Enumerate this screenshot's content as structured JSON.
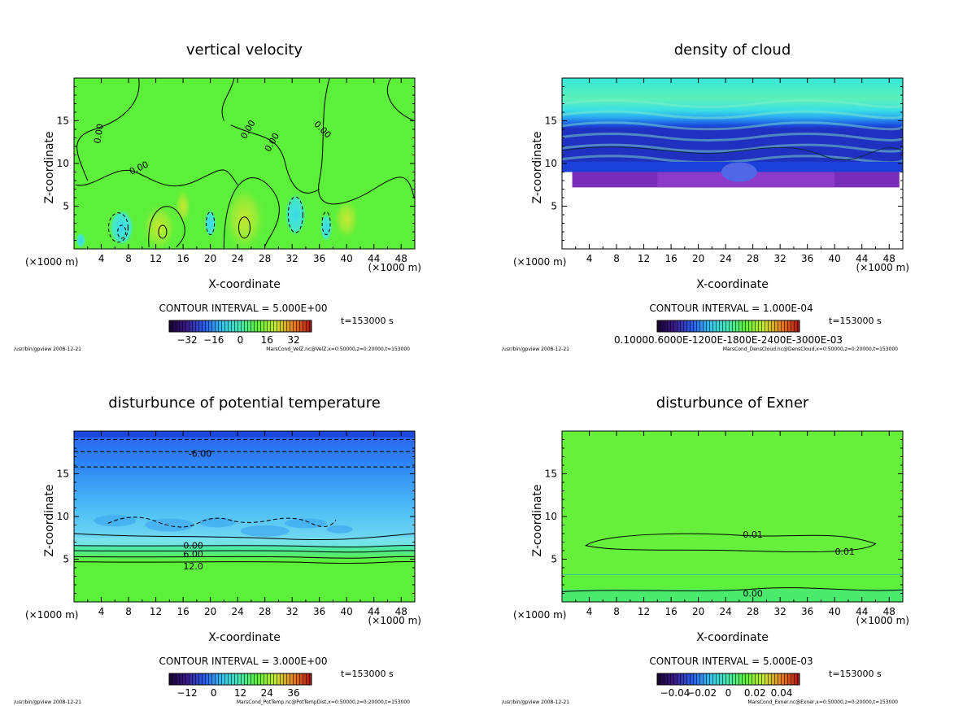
{
  "chart_data": [
    {
      "type": "heatmap",
      "title": "vertical velocity",
      "xlabel": "X-coordinate",
      "ylabel": "Z-coordinate",
      "x_unit": "(×1000 m)",
      "xlim": [
        0,
        50
      ],
      "ylim": [
        0,
        20
      ],
      "xticks": [
        4,
        8,
        12,
        16,
        20,
        24,
        28,
        32,
        36,
        40,
        44,
        48
      ],
      "yticks": [
        5,
        10,
        15
      ],
      "contour_interval": "CONTOUR INTERVAL = 5.000E+00",
      "time": "t=153000 s",
      "colorbar_ticks": [
        "−32",
        "−16",
        "0",
        "16",
        "32"
      ],
      "contour_labels": [
        "0.00",
        "0.00",
        "0.00",
        "0.00",
        "0.00"
      ],
      "footer_left": "/usr/bin/gpview  2008-12-21",
      "footer_right": "MarsCond_VelZ.nc@VelZ,x=0:50000,z=0:20000,t=153000"
    },
    {
      "type": "heatmap",
      "title": "density of cloud",
      "xlabel": "X-coordinate",
      "ylabel": "Z-coordinate",
      "x_unit": "(×1000 m)",
      "xlim": [
        0,
        50
      ],
      "ylim": [
        0,
        20
      ],
      "xticks": [
        4,
        8,
        12,
        16,
        20,
        24,
        28,
        32,
        36,
        40,
        44,
        48
      ],
      "yticks": [
        5,
        10,
        15
      ],
      "contour_interval": "CONTOUR INTERVAL = 1.000E-04",
      "time": "t=153000 s",
      "colorbar_ticks": [
        "0.10000.6000E-1200E-1800E-2400E-3000E-03"
      ],
      "contour_labels": [],
      "footer_left": "/usr/bin/gpview  2008-12-21",
      "footer_right": "MarsCond_DensCloud.nc@DensCloud,x=0:50000,z=0:20000,t=153000"
    },
    {
      "type": "heatmap",
      "title": "disturbunce of potential temperature",
      "xlabel": "X-coordinate",
      "ylabel": "Z-coordinate",
      "x_unit": "(×1000 m)",
      "xlim": [
        0,
        50
      ],
      "ylim": [
        0,
        20
      ],
      "xticks": [
        4,
        8,
        12,
        16,
        20,
        24,
        28,
        32,
        36,
        40,
        44,
        48
      ],
      "yticks": [
        5,
        10,
        15
      ],
      "contour_interval": "CONTOUR INTERVAL = 3.000E+00",
      "time": "t=153000 s",
      "colorbar_ticks": [
        "−12",
        "0",
        "12",
        "24",
        "36"
      ],
      "contour_labels": [
        "-6.00",
        "0.00",
        "6.00",
        "12.0"
      ],
      "footer_left": "/usr/bin/gpview  2008-12-21",
      "footer_right": "MarsCond_PotTemp.nc@PotTempDist,x=0:50000,z=0:20000,t=153000"
    },
    {
      "type": "heatmap",
      "title": "disturbunce of Exner",
      "xlabel": "X-coordinate",
      "ylabel": "Z-coordinate",
      "x_unit": "(×1000 m)",
      "xlim": [
        0,
        50
      ],
      "ylim": [
        0,
        20
      ],
      "xticks": [
        4,
        8,
        12,
        16,
        20,
        24,
        28,
        32,
        36,
        40,
        44,
        48
      ],
      "yticks": [
        5,
        10,
        15
      ],
      "contour_interval": "CONTOUR INTERVAL = 5.000E-03",
      "time": "t=153000 s",
      "colorbar_ticks": [
        "−0.04",
        "−0.02",
        "0",
        "0.02",
        "0.04"
      ],
      "contour_labels": [
        "0.01",
        "0.01",
        "0.00"
      ],
      "footer_left": "/usr/bin/gpview  2008-12-21",
      "footer_right": "MarsCond_Exner.nc@Exner,x=0:50000,z=0:20000,t=153000"
    }
  ],
  "colors": {
    "background": "#ffffff",
    "axes": "#000000",
    "field_green": "#5df03a",
    "field_cyan": "#3fe8d8",
    "field_blue": "#2a78f0",
    "field_purple": "#7a2cb8",
    "sky_blue": "#4fc4f6"
  }
}
